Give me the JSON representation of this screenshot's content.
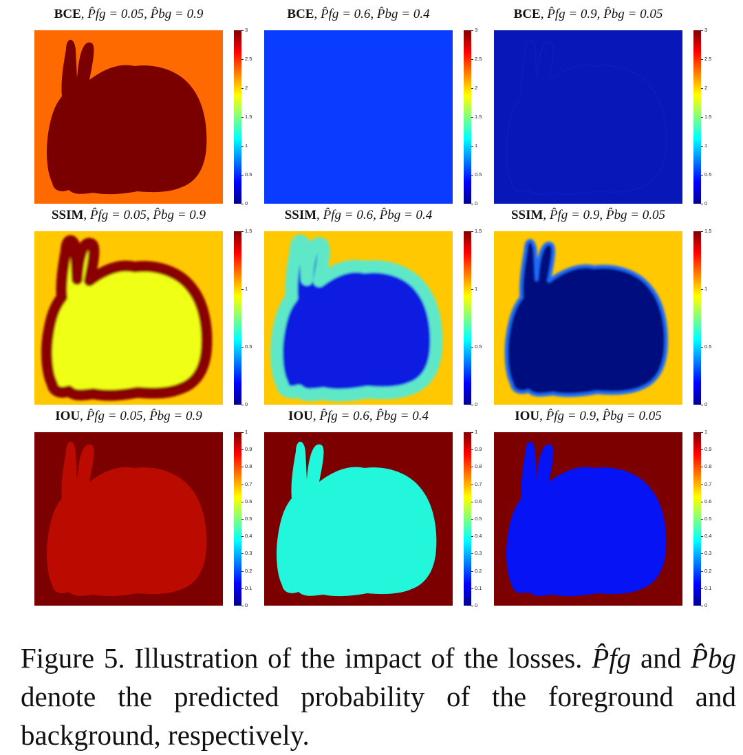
{
  "figure": {
    "panels": [
      {
        "loss": "BCE",
        "params": "P̂fg = 0.05, P̂bg = 0.9",
        "cbar_ticks": [
          "0",
          "0.5",
          "1",
          "1.5",
          "2",
          "2.5",
          "3"
        ],
        "style": "bce1"
      },
      {
        "loss": "BCE",
        "params": "P̂fg = 0.6, P̂bg = 0.4",
        "cbar_ticks": [
          "0",
          "0.5",
          "1",
          "1.5",
          "2",
          "2.5",
          "3"
        ],
        "style": "bce2"
      },
      {
        "loss": "BCE",
        "params": "P̂fg = 0.9, P̂bg = 0.05",
        "cbar_ticks": [
          "0",
          "0.5",
          "1",
          "1.5",
          "2",
          "2.5",
          "3"
        ],
        "style": "bce3"
      },
      {
        "loss": "SSIM",
        "params": "P̂fg = 0.05, P̂bg = 0.9",
        "cbar_ticks": [
          "0",
          "0.5",
          "1",
          "1.5"
        ],
        "style": "ssim1"
      },
      {
        "loss": "SSIM",
        "params": "P̂fg = 0.6, P̂bg = 0.4",
        "cbar_ticks": [
          "0",
          "0.5",
          "1",
          "1.5"
        ],
        "style": "ssim2"
      },
      {
        "loss": "SSIM",
        "params": "P̂fg = 0.9, P̂bg = 0.05",
        "cbar_ticks": [
          "0",
          "0.5",
          "1",
          "1.5"
        ],
        "style": "ssim3"
      },
      {
        "loss": "IOU",
        "params": "P̂fg = 0.05, P̂bg = 0.9",
        "cbar_ticks": [
          "0",
          "0.1",
          "0.2",
          "0.3",
          "0.4",
          "0.5",
          "0.6",
          "0.7",
          "0.8",
          "0.9",
          "1"
        ],
        "style": "iou1"
      },
      {
        "loss": "IOU",
        "params": "P̂fg = 0.6, P̂bg = 0.4",
        "cbar_ticks": [
          "0",
          "0.1",
          "0.2",
          "0.3",
          "0.4",
          "0.5",
          "0.6",
          "0.7",
          "0.8",
          "0.9",
          "1"
        ],
        "style": "iou2"
      },
      {
        "loss": "IOU",
        "params": "P̂fg = 0.9, P̂bg = 0.05",
        "cbar_ticks": [
          "0",
          "0.1",
          "0.2",
          "0.3",
          "0.4",
          "0.5",
          "0.6",
          "0.7",
          "0.8",
          "0.9",
          "1"
        ],
        "style": "iou3"
      }
    ],
    "caption": {
      "label": "Figure 5.",
      "text_1": "Illustration of the impact of the losses.",
      "pfg": "P̂fg",
      "text_2": "and",
      "pbg": "P̂bg",
      "text_3": "denote the predicted probability of the foreground and background, respectively."
    }
  },
  "colors": {
    "bce1_bg": "#ff6a00",
    "bce1_fg": "#7a0000",
    "bce2_bg": "#0a3cff",
    "bce3_bg": "#0818b8",
    "ssim1_bg": "#ffc800",
    "ssim1_fg": "#f0ff14",
    "ssim1_edge": "#8a0000",
    "ssim2_bg": "#ffc800",
    "ssim2_fg": "#0a1ae0",
    "ssim2_edge": "#5fe8c8",
    "ssim3_bg": "#ffc800",
    "ssim3_fg": "#00077e",
    "ssim3_edge": "#1e6cff",
    "iou1_bg": "#7c0000",
    "iou1_fg": "#bb0a00",
    "iou2_bg": "#7c0000",
    "iou2_fg": "#22f7dc",
    "iou3_bg": "#7c0000",
    "iou3_fg": "#0614f5"
  }
}
